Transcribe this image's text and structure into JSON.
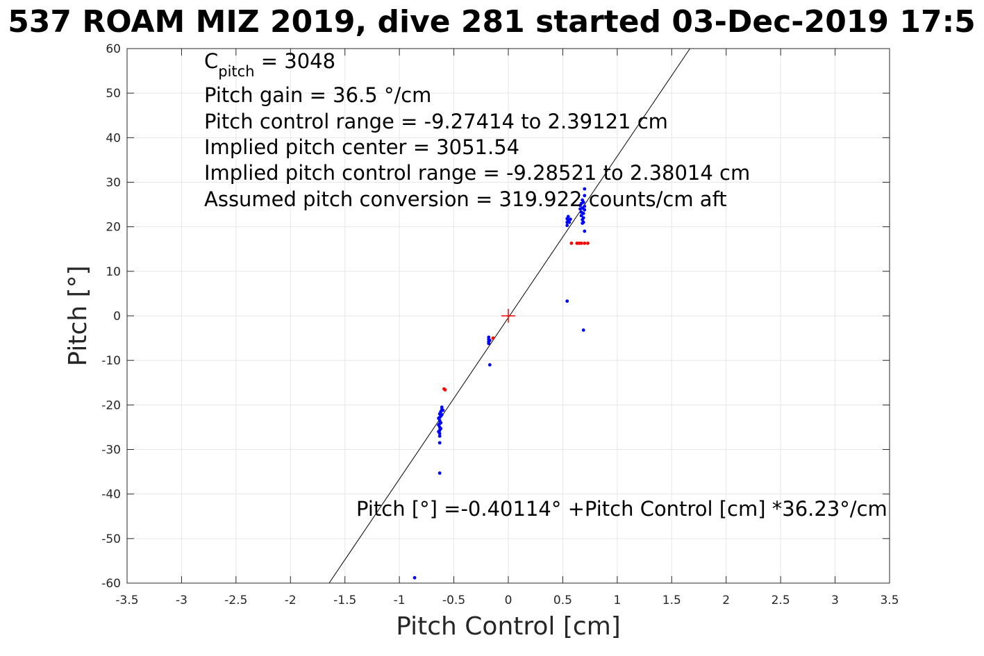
{
  "chart_data": {
    "type": "scatter",
    "title": "537 ROAM MIZ 2019, dive 281 started 03-Dec-2019 17:5",
    "xlabel": "Pitch Control [cm]",
    "ylabel": "Pitch [°]",
    "xlim": [
      -3.5,
      3.5
    ],
    "ylim": [
      -60,
      60
    ],
    "x_ticks": [
      -3.5,
      -3,
      -2.5,
      -2,
      -1.5,
      -1,
      -0.5,
      0,
      0.5,
      1,
      1.5,
      2,
      2.5,
      3,
      3.5
    ],
    "x_tick_labels": [
      "-3.5",
      "-3",
      "-2.5",
      "-2",
      "-1.5",
      "-1",
      "-0.5",
      "0",
      "0.5",
      "1",
      "1.5",
      "2",
      "2.5",
      "3",
      "3.5"
    ],
    "y_ticks": [
      -60,
      -50,
      -40,
      -30,
      -20,
      -10,
      0,
      10,
      20,
      30,
      40,
      50,
      60
    ],
    "y_tick_labels": [
      "-60",
      "-50",
      "-40",
      "-30",
      "-20",
      "-10",
      "0",
      "10",
      "20",
      "30",
      "40",
      "50",
      "60"
    ],
    "grid": true,
    "colors": {
      "good_points": "#0000ff",
      "flagged_points": "#ff0000",
      "center_marker": "#ff0000",
      "fit_line": "#000000",
      "grid": "#e6e6e6",
      "axes": "#262626"
    },
    "annotations": {
      "c_pitch_main": "C",
      "c_pitch_sub": "pitch",
      "c_pitch_value": " = 3048",
      "lines": [
        "Pitch gain = 36.5 °/cm",
        "Pitch control range = -9.27414 to 2.39121 cm",
        "Implied pitch center = 3051.54",
        "Implied pitch control range = -9.28521 to 2.38014 cm",
        "Assumed pitch conversion = 319.922 counts/cm aft"
      ],
      "fit_equation": "Pitch [°] =-0.40114° +Pitch Control [cm] *36.23°/cm"
    },
    "fit_line": {
      "intercept": -0.40114,
      "slope": 36.23
    },
    "center_marker": {
      "x": 0,
      "y": 0
    },
    "series": [
      {
        "points": [
          [
            -0.63,
            -22.0
          ],
          [
            -0.63,
            -22.8
          ],
          [
            -0.63,
            -23.5
          ],
          [
            -0.63,
            -24.2
          ],
          [
            -0.63,
            -25.0
          ],
          [
            -0.63,
            -25.7
          ],
          [
            -0.63,
            -26.4
          ],
          [
            -0.63,
            -27.0
          ],
          [
            -0.64,
            -23.0
          ],
          [
            -0.64,
            -24.5
          ],
          [
            -0.64,
            -26.0
          ],
          [
            -0.62,
            -21.5
          ],
          [
            -0.62,
            -22.5
          ],
          [
            -0.62,
            -24.0
          ],
          [
            -0.62,
            -25.3
          ],
          [
            -0.61,
            -21.0
          ],
          [
            -0.61,
            -22.2
          ],
          [
            -0.61,
            -20.5
          ],
          [
            -0.6,
            -21.2
          ],
          [
            -0.63,
            -28.5
          ],
          [
            -0.63,
            -35.3
          ],
          [
            -0.86,
            -58.8
          ],
          [
            -0.18,
            -4.8
          ],
          [
            -0.18,
            -5.3
          ],
          [
            -0.18,
            -5.8
          ],
          [
            -0.18,
            -6.2
          ],
          [
            -0.17,
            -5.5
          ],
          [
            -0.17,
            -11.0
          ],
          [
            0.54,
            21.0
          ],
          [
            0.54,
            21.8
          ],
          [
            0.54,
            20.3
          ],
          [
            0.55,
            22.3
          ],
          [
            0.55,
            21.4
          ],
          [
            0.56,
            21.0
          ],
          [
            0.57,
            21.7
          ],
          [
            0.54,
            3.3
          ],
          [
            0.66,
            24.0
          ],
          [
            0.66,
            24.8
          ],
          [
            0.67,
            23.3
          ],
          [
            0.67,
            25.2
          ],
          [
            0.67,
            22.5
          ],
          [
            0.68,
            24.2
          ],
          [
            0.68,
            21.6
          ],
          [
            0.68,
            26.0
          ],
          [
            0.68,
            20.8
          ],
          [
            0.69,
            25.5
          ],
          [
            0.69,
            23.0
          ],
          [
            0.69,
            22.0
          ],
          [
            0.69,
            21.0
          ],
          [
            0.7,
            24.6
          ],
          [
            0.7,
            23.8
          ],
          [
            0.7,
            28.5
          ],
          [
            0.7,
            27.0
          ],
          [
            0.7,
            19.0
          ],
          [
            0.69,
            -3.2
          ]
        ]
      },
      {
        "points": [
          [
            -0.59,
            -16.4
          ],
          [
            -0.58,
            -16.6
          ],
          [
            -0.14,
            -5.0
          ],
          [
            0.58,
            16.3
          ],
          [
            0.63,
            16.3
          ],
          [
            0.65,
            16.3
          ],
          [
            0.67,
            16.3
          ],
          [
            0.7,
            16.3
          ],
          [
            0.73,
            16.3
          ]
        ]
      }
    ]
  }
}
